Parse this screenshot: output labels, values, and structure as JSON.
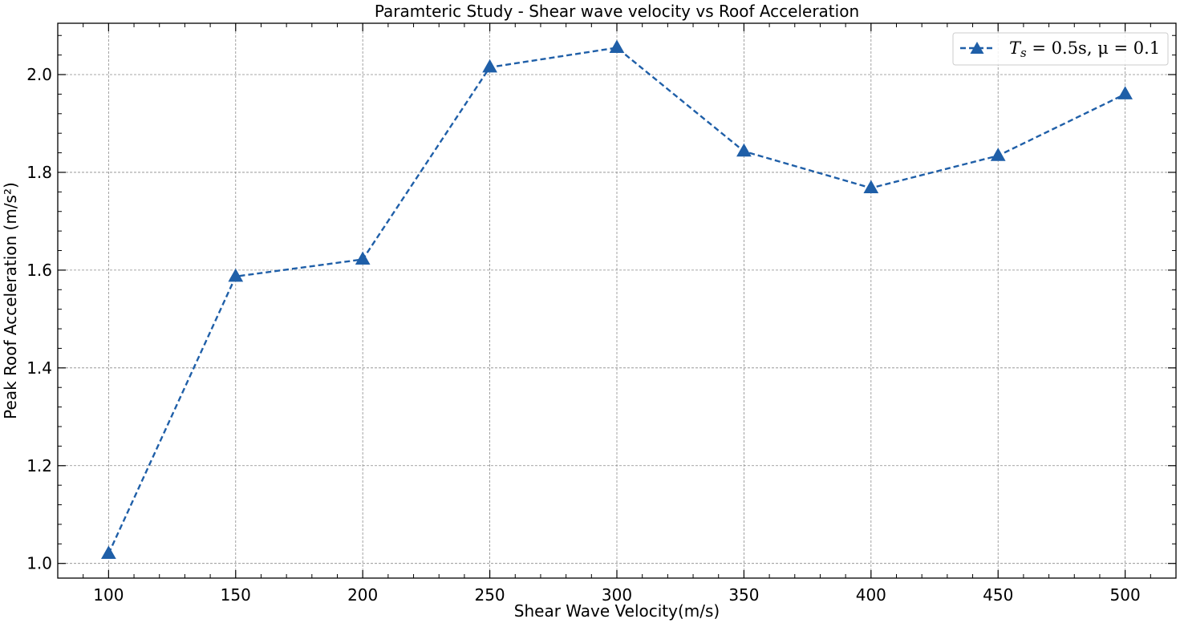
{
  "chart_data": {
    "type": "line",
    "title": "Paramteric Study - Shear wave velocity vs Roof Acceleration",
    "xlabel": "Shear Wave Velocity(m/s)",
    "ylabel": "Peak Roof Acceleration (m/s²)",
    "xlim": [
      80,
      520
    ],
    "ylim": [
      0.97,
      2.105
    ],
    "x": [
      100,
      150,
      200,
      250,
      300,
      350,
      400,
      450,
      500
    ],
    "x_ticks": [
      "100",
      "150",
      "200",
      "250",
      "300",
      "350",
      "400",
      "450",
      "500"
    ],
    "y_ticks": [
      "1.0",
      "1.2",
      "1.4",
      "1.6",
      "1.8",
      "2.0"
    ],
    "grid": true,
    "legend_position": "top-right",
    "series": [
      {
        "name": "T_s = 0.5s, μ = 0.1",
        "values": [
          1.02,
          1.587,
          1.622,
          2.015,
          2.055,
          1.843,
          1.768,
          1.834,
          1.96
        ],
        "color": "#1f5fa8",
        "line_style": "dashed",
        "marker": "triangle"
      }
    ]
  }
}
